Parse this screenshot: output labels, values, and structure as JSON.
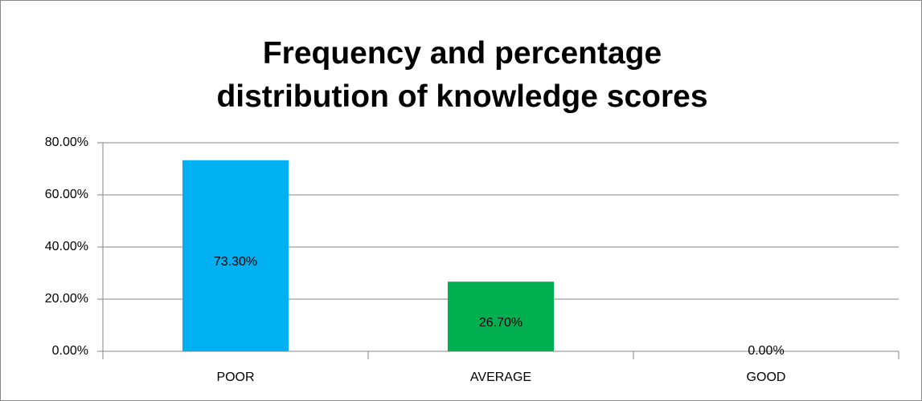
{
  "chart_data": {
    "type": "bar",
    "title": "Frequency and percentage distribution of knowledge scores",
    "categories": [
      "POOR",
      "AVERAGE",
      "GOOD"
    ],
    "values": [
      73.3,
      26.7,
      0
    ],
    "value_labels": [
      "73.30%",
      "26.70%",
      "0.00%"
    ],
    "colors": [
      "#00b0f0",
      "#00b050",
      "#ffc000"
    ],
    "ylim": [
      0,
      80
    ],
    "yticks": [
      {
        "value": 0,
        "label": "0.00%"
      },
      {
        "value": 20,
        "label": "20.00%"
      },
      {
        "value": 40,
        "label": "40.00%"
      },
      {
        "value": 60,
        "label": "60.00%"
      },
      {
        "value": 80,
        "label": "80.00%"
      }
    ],
    "grid": true
  }
}
